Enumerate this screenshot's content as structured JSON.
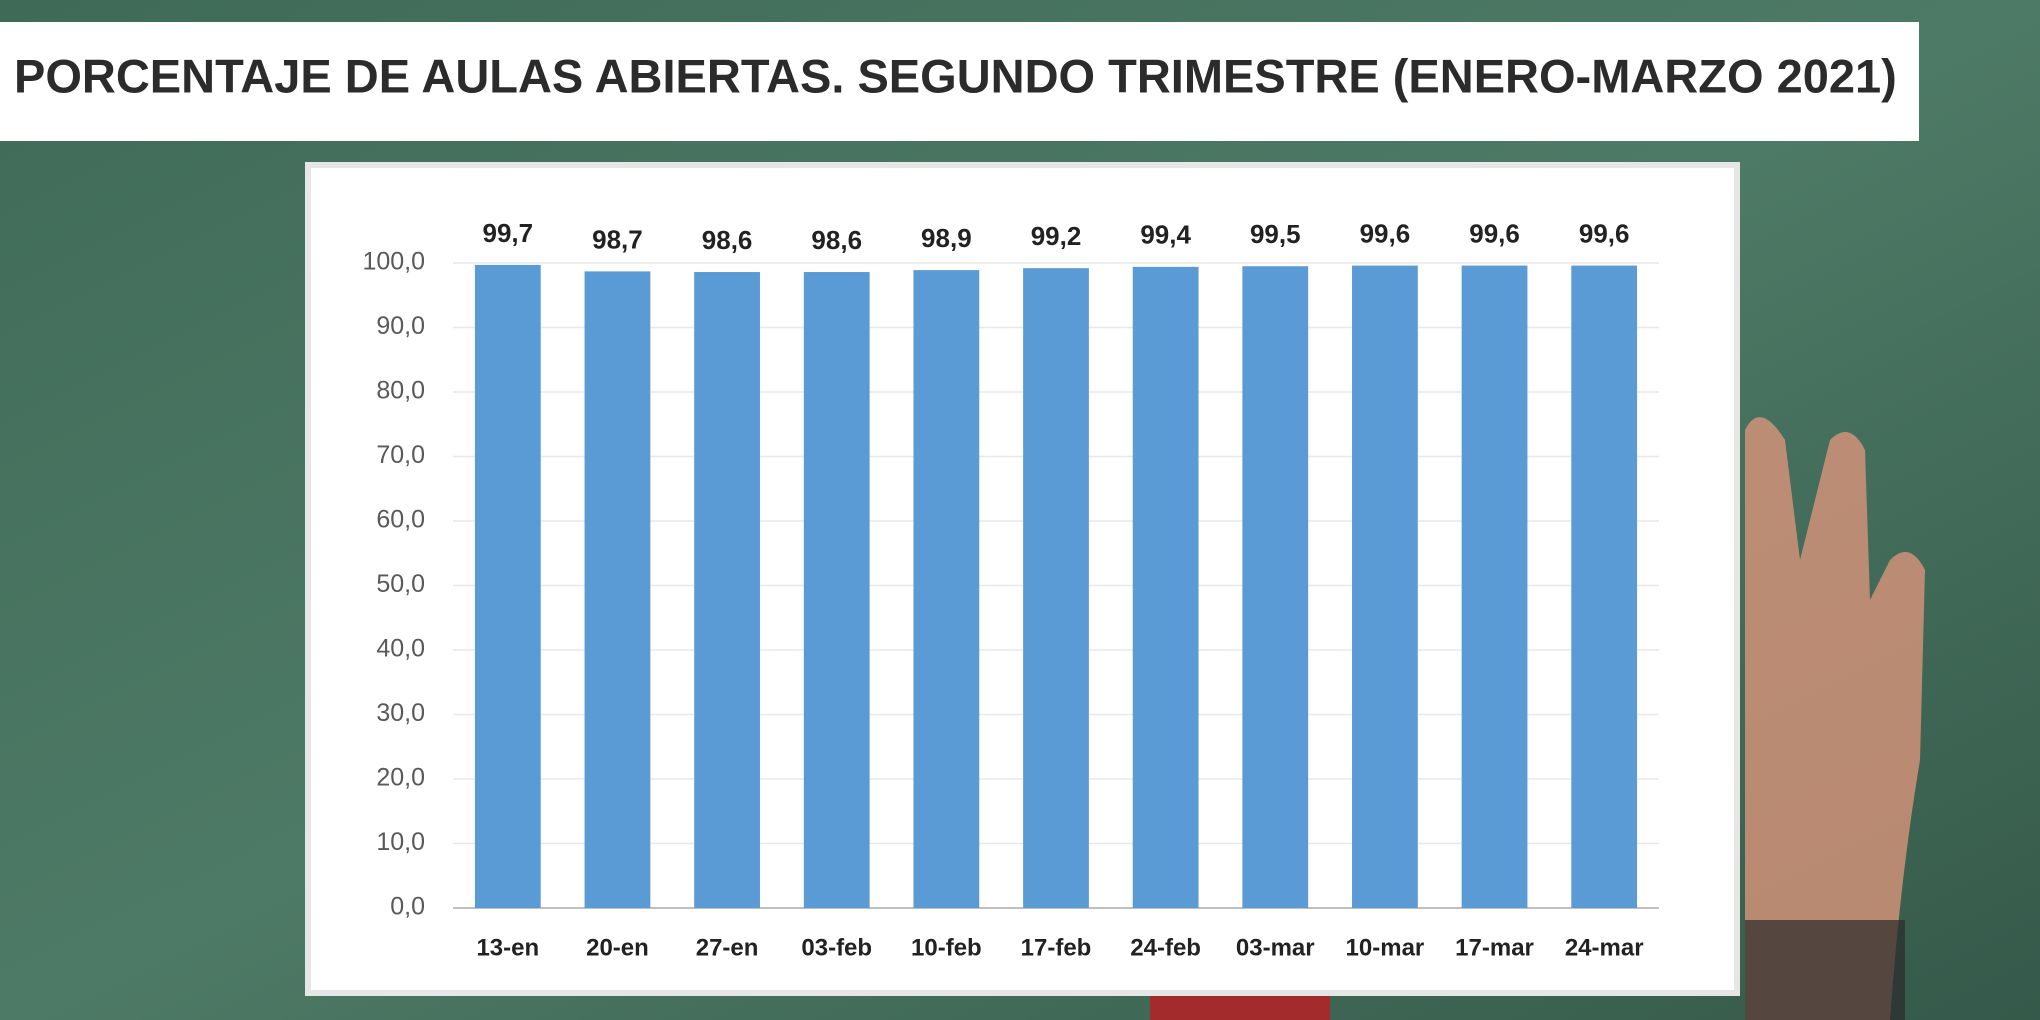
{
  "chart_data": {
    "type": "bar",
    "title": "PORCENTAJE DE AULAS ABIERTAS. SEGUNDO TRIMESTRE (ENERO-MARZO 2021)",
    "categories": [
      "13-en",
      "20-en",
      "27-en",
      "03-feb",
      "10-feb",
      "17-feb",
      "24-feb",
      "03-mar",
      "10-mar",
      "17-mar",
      "24-mar"
    ],
    "values": [
      99.7,
      98.7,
      98.6,
      98.6,
      98.9,
      99.2,
      99.4,
      99.5,
      99.6,
      99.6,
      99.6
    ],
    "value_labels": [
      "99,7",
      "98,7",
      "98,6",
      "98,6",
      "98,9",
      "99,2",
      "99,4",
      "99,5",
      "99,6",
      "99,6",
      "99,6"
    ],
    "color": "#5b9bd5",
    "ylim": [
      0,
      100
    ],
    "yticks": [
      {
        "value": 0,
        "label": "0,0"
      },
      {
        "value": 10,
        "label": "10,0"
      },
      {
        "value": 20,
        "label": "20,0"
      },
      {
        "value": 30,
        "label": "30,0"
      },
      {
        "value": 40,
        "label": "40,0"
      },
      {
        "value": 50,
        "label": "50,0"
      },
      {
        "value": 60,
        "label": "60,0"
      },
      {
        "value": 70,
        "label": "70,0"
      },
      {
        "value": 80,
        "label": "80,0"
      },
      {
        "value": 90,
        "label": "90,0"
      },
      {
        "value": 100,
        "label": "100,0"
      }
    ],
    "grid": true
  }
}
